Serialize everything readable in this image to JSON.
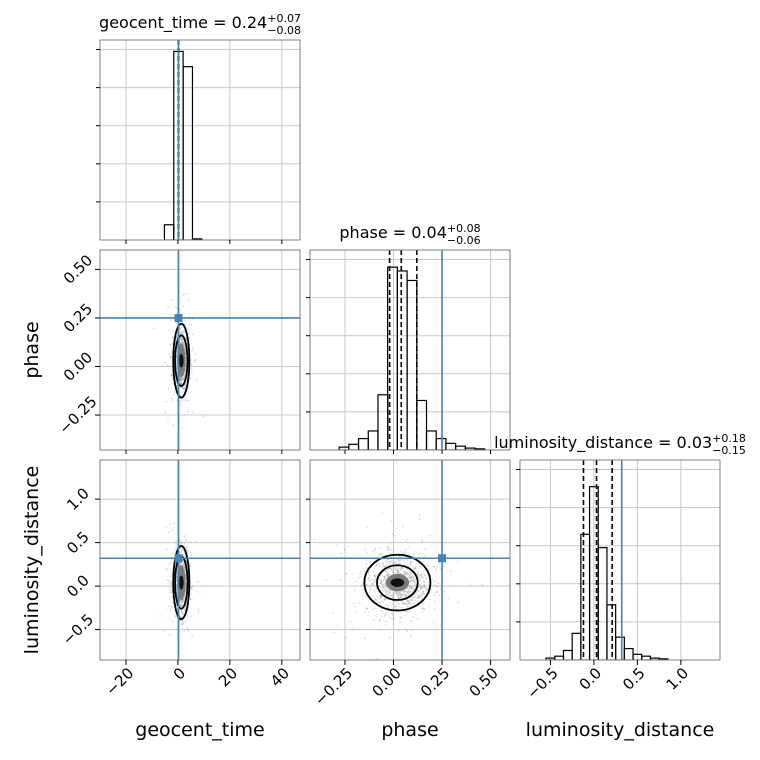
{
  "chart_data": {
    "type": "corner",
    "parameters": [
      {
        "key": "geocent_time",
        "label": "geocent_time",
        "title": {
          "name": "geocent_time",
          "median": "0.24",
          "upper": "+0.07",
          "lower": "−0.08"
        },
        "range": [
          -30,
          47
        ],
        "ticks": [
          {
            "value": -20,
            "label": "−20"
          },
          {
            "value": 0,
            "label": "0"
          },
          {
            "value": 20,
            "label": "20"
          },
          {
            "value": 40,
            "label": "40"
          }
        ],
        "injection": 0.24,
        "quantiles": [
          0.16,
          0.24,
          0.31
        ],
        "histogram": {
          "ymax": 1.0,
          "bins": [
            {
              "x0": -5.2,
              "x1": -1.6,
              "h": 0.08
            },
            {
              "x0": -1.6,
              "x1": 2.0,
              "h": 0.99
            },
            {
              "x0": 2.0,
              "x1": 5.6,
              "h": 0.91
            },
            {
              "x0": 5.6,
              "x1": 9.2,
              "h": 0.006
            }
          ]
        }
      },
      {
        "key": "phase",
        "label": "phase",
        "title": {
          "name": "phase",
          "median": "0.04",
          "upper": "+0.08",
          "lower": "−0.06"
        },
        "range": [
          -0.43,
          0.6
        ],
        "ticks": [
          {
            "value": -0.25,
            "label": "−0.25"
          },
          {
            "value": 0.0,
            "label": "0.00"
          },
          {
            "value": 0.25,
            "label": "0.25"
          },
          {
            "value": 0.5,
            "label": "0.50"
          }
        ],
        "injection": 0.25,
        "quantiles": [
          -0.02,
          0.04,
          0.12
        ],
        "histogram": {
          "ymax": 1.0,
          "bins": [
            {
              "x0": -0.28,
              "x1": -0.23,
              "h": 0.015
            },
            {
              "x0": -0.23,
              "x1": -0.18,
              "h": 0.03
            },
            {
              "x0": -0.18,
              "x1": -0.13,
              "h": 0.06
            },
            {
              "x0": -0.13,
              "x1": -0.08,
              "h": 0.1
            },
            {
              "x0": -0.08,
              "x1": -0.03,
              "h": 0.29
            },
            {
              "x0": -0.03,
              "x1": 0.02,
              "h": 0.96
            },
            {
              "x0": 0.02,
              "x1": 0.07,
              "h": 0.94
            },
            {
              "x0": 0.07,
              "x1": 0.12,
              "h": 0.89
            },
            {
              "x0": 0.12,
              "x1": 0.17,
              "h": 0.26
            },
            {
              "x0": 0.17,
              "x1": 0.22,
              "h": 0.1
            },
            {
              "x0": 0.22,
              "x1": 0.27,
              "h": 0.06
            },
            {
              "x0": 0.27,
              "x1": 0.32,
              "h": 0.035
            },
            {
              "x0": 0.32,
              "x1": 0.37,
              "h": 0.02
            },
            {
              "x0": 0.37,
              "x1": 0.42,
              "h": 0.01
            },
            {
              "x0": 0.42,
              "x1": 0.47,
              "h": 0.006
            }
          ]
        }
      },
      {
        "key": "luminosity_distance",
        "label": "luminosity_distance",
        "title": {
          "name": "luminosity_distance",
          "median": "0.03",
          "upper": "+0.18",
          "lower": "−0.15"
        },
        "range": [
          -0.85,
          1.45
        ],
        "ticks": [
          {
            "value": -0.5,
            "label": "−0.5"
          },
          {
            "value": 0.0,
            "label": "0.0"
          },
          {
            "value": 0.5,
            "label": "0.5"
          },
          {
            "value": 1.0,
            "label": "1.0"
          }
        ],
        "injection": 0.32,
        "quantiles": [
          -0.12,
          0.03,
          0.21
        ],
        "histogram": {
          "ymax": 1.0,
          "bins": [
            {
              "x0": -0.55,
              "x1": -0.45,
              "h": 0.01
            },
            {
              "x0": -0.45,
              "x1": -0.35,
              "h": 0.02
            },
            {
              "x0": -0.35,
              "x1": -0.25,
              "h": 0.05
            },
            {
              "x0": -0.25,
              "x1": -0.15,
              "h": 0.14
            },
            {
              "x0": -0.15,
              "x1": -0.05,
              "h": 0.66
            },
            {
              "x0": -0.05,
              "x1": 0.05,
              "h": 0.91
            },
            {
              "x0": 0.05,
              "x1": 0.15,
              "h": 0.59
            },
            {
              "x0": 0.15,
              "x1": 0.25,
              "h": 0.29
            },
            {
              "x0": 0.25,
              "x1": 0.35,
              "h": 0.12
            },
            {
              "x0": 0.35,
              "x1": 0.45,
              "h": 0.06
            },
            {
              "x0": 0.45,
              "x1": 0.55,
              "h": 0.03
            },
            {
              "x0": 0.55,
              "x1": 0.65,
              "h": 0.02
            },
            {
              "x0": 0.65,
              "x1": 0.75,
              "h": 0.01
            },
            {
              "x0": 0.75,
              "x1": 0.85,
              "h": 0.006
            }
          ]
        }
      }
    ],
    "pairs": [
      {
        "x": "geocent_time",
        "y": "phase",
        "center": [
          1.3,
          0.03
        ],
        "spread": [
          1.4,
          0.08
        ],
        "contours": [
          {
            "rx": 0.9,
            "ry": 0.035,
            "fill": "#111111"
          },
          {
            "rx": 1.6,
            "ry": 0.085,
            "fill": "#7a7a7a"
          },
          {
            "rx": 2.4,
            "ry": 0.13,
            "stroke": "#000000"
          },
          {
            "rx": 3.1,
            "ry": 0.19,
            "stroke": "#000000"
          }
        ]
      },
      {
        "x": "geocent_time",
        "y": "luminosity_distance",
        "center": [
          1.3,
          0.04
        ],
        "spread": [
          1.4,
          0.18
        ],
        "contours": [
          {
            "rx": 0.9,
            "ry": 0.08,
            "fill": "#111111"
          },
          {
            "rx": 1.6,
            "ry": 0.2,
            "fill": "#7a7a7a"
          },
          {
            "rx": 2.4,
            "ry": 0.3,
            "stroke": "#000000"
          },
          {
            "rx": 3.1,
            "ry": 0.42,
            "stroke": "#000000"
          }
        ]
      },
      {
        "x": "phase",
        "y": "luminosity_distance",
        "center": [
          0.02,
          0.04
        ],
        "spread": [
          0.08,
          0.18
        ],
        "contours": [
          {
            "rx": 0.035,
            "ry": 0.05,
            "fill": "#111111"
          },
          {
            "rx": 0.06,
            "ry": 0.1,
            "fill": "#7a7a7a"
          },
          {
            "rx": 0.105,
            "ry": 0.2,
            "stroke": "#000000"
          },
          {
            "rx": 0.17,
            "ry": 0.32,
            "stroke": "#000000"
          }
        ]
      }
    ],
    "injection_color": "#4682b4",
    "histogram_color": "#000000",
    "grid": true
  }
}
